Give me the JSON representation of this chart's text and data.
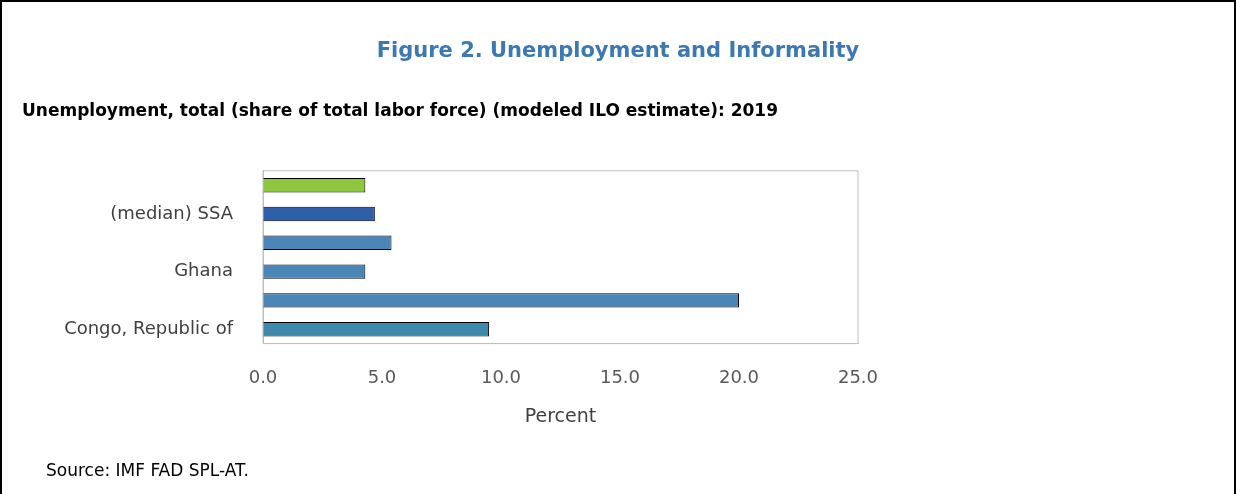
{
  "chart_data": {
    "type": "bar",
    "orientation": "horizontal",
    "title": "Figure 2. Unemployment and Informality",
    "subtitle": "Unemployment, total (share of total labor force) (modeled ILO estimate): 2019",
    "xlabel": "Percent",
    "categories": [
      null,
      "(median) SSA",
      null,
      "Ghana",
      null,
      "Congo, Republic of"
    ],
    "values": [
      4.3,
      4.7,
      5.4,
      4.3,
      20.0,
      9.5
    ],
    "colors": [
      "#8dc63f",
      "#2f5fa8",
      "#4a86b8",
      "#4a86b8",
      "#4a86b8",
      "#3f89ad"
    ],
    "xlim": [
      0,
      25
    ],
    "xticks": [
      {
        "value": 0,
        "label": "0.0"
      },
      {
        "value": 5,
        "label": "5.0"
      },
      {
        "value": 10,
        "label": "10.0"
      },
      {
        "value": 15,
        "label": "15.0"
      },
      {
        "value": 20,
        "label": "20.0"
      },
      {
        "value": 25,
        "label": "25.0"
      }
    ],
    "grid": false,
    "legend": false,
    "annotations": [
      "Source: IMF FAD SPL-AT."
    ]
  }
}
